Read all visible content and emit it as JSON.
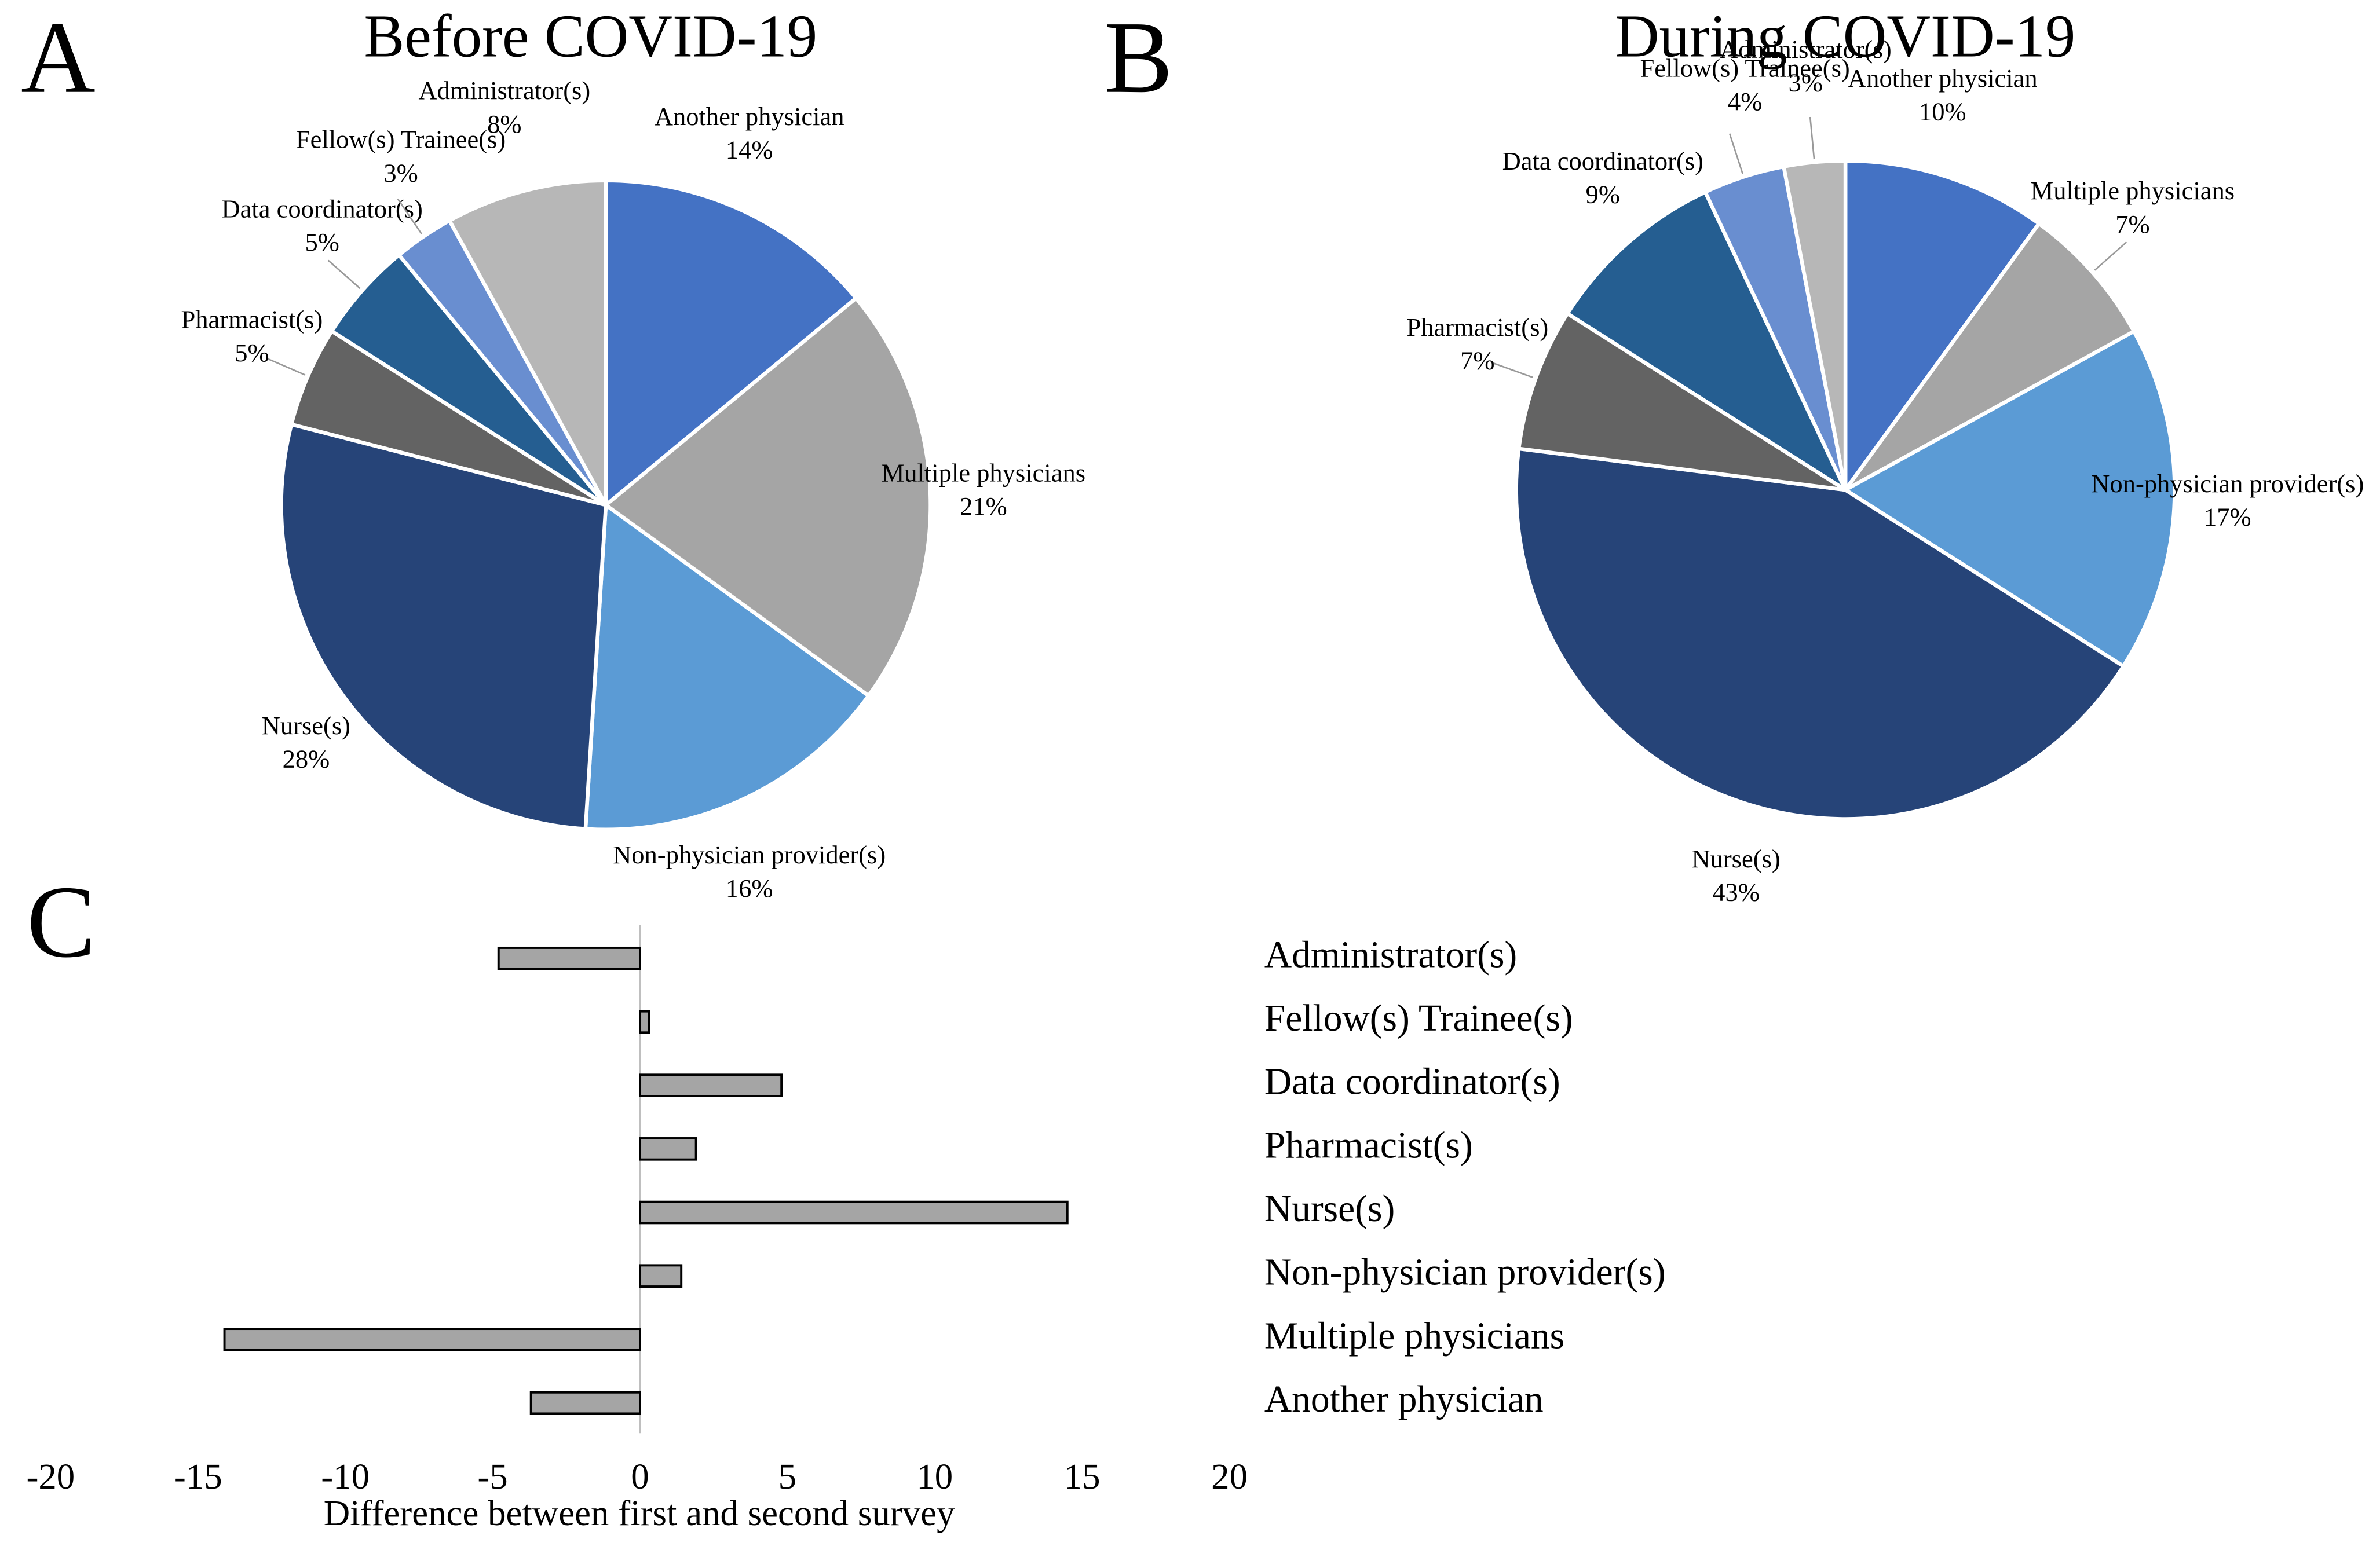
{
  "chart_data": [
    {
      "type": "pie",
      "panel": "A",
      "title": "Before COVID-19",
      "categories": [
        "Another physician",
        "Multiple physicians",
        "Non-physician provider(s)",
        "Nurse(s)",
        "Pharmacist(s)",
        "Data coordinator(s)",
        "Fellow(s) Trainee(s)",
        "Administrator(s)"
      ],
      "values": [
        14,
        21,
        16,
        28,
        5,
        5,
        3,
        8
      ],
      "value_labels": [
        "14%",
        "21%",
        "16%",
        "28%",
        "5%",
        "5%",
        "3%",
        "8%"
      ],
      "colors": [
        "#4472c4",
        "#a5a5a5",
        "#5b9bd5",
        "#264478",
        "#636363",
        "#255e91",
        "#698ed0",
        "#b7b7b7"
      ]
    },
    {
      "type": "pie",
      "panel": "B",
      "title": "During COVID-19",
      "categories": [
        "Another physician",
        "Multiple physicians",
        "Non-physician provider(s)",
        "Nurse(s)",
        "Pharmacist(s)",
        "Data coordinator(s)",
        "Fellow(s) Trainee(s)",
        "Administrator(s)"
      ],
      "values": [
        10,
        7,
        17,
        43,
        7,
        9,
        4,
        3
      ],
      "value_labels": [
        "10%",
        "7%",
        "17%",
        "43%",
        "7%",
        "9%",
        "4%",
        "3%"
      ],
      "colors": [
        "#4472c4",
        "#a5a5a5",
        "#5b9bd5",
        "#264478",
        "#636363",
        "#255e91",
        "#698ed0",
        "#b7b7b7"
      ]
    },
    {
      "type": "hbar",
      "panel": "C",
      "categories": [
        "Administrator(s)",
        "Fellow(s) Trainee(s)",
        "Data coordinator(s)",
        "Pharmacist(s)",
        "Nurse(s)",
        "Non-physician provider(s)",
        "Multiple physicians",
        "Another physician"
      ],
      "values": [
        -4.8,
        0.3,
        4.8,
        1.9,
        14.5,
        1.4,
        -14.1,
        -3.7
      ],
      "color": "#a5a5a5",
      "xlabel": "Difference between first and second survey",
      "xlim": [
        -20,
        20
      ],
      "xticks": [
        -20,
        -15,
        -10,
        -5,
        0,
        5,
        10,
        15,
        20
      ]
    }
  ]
}
